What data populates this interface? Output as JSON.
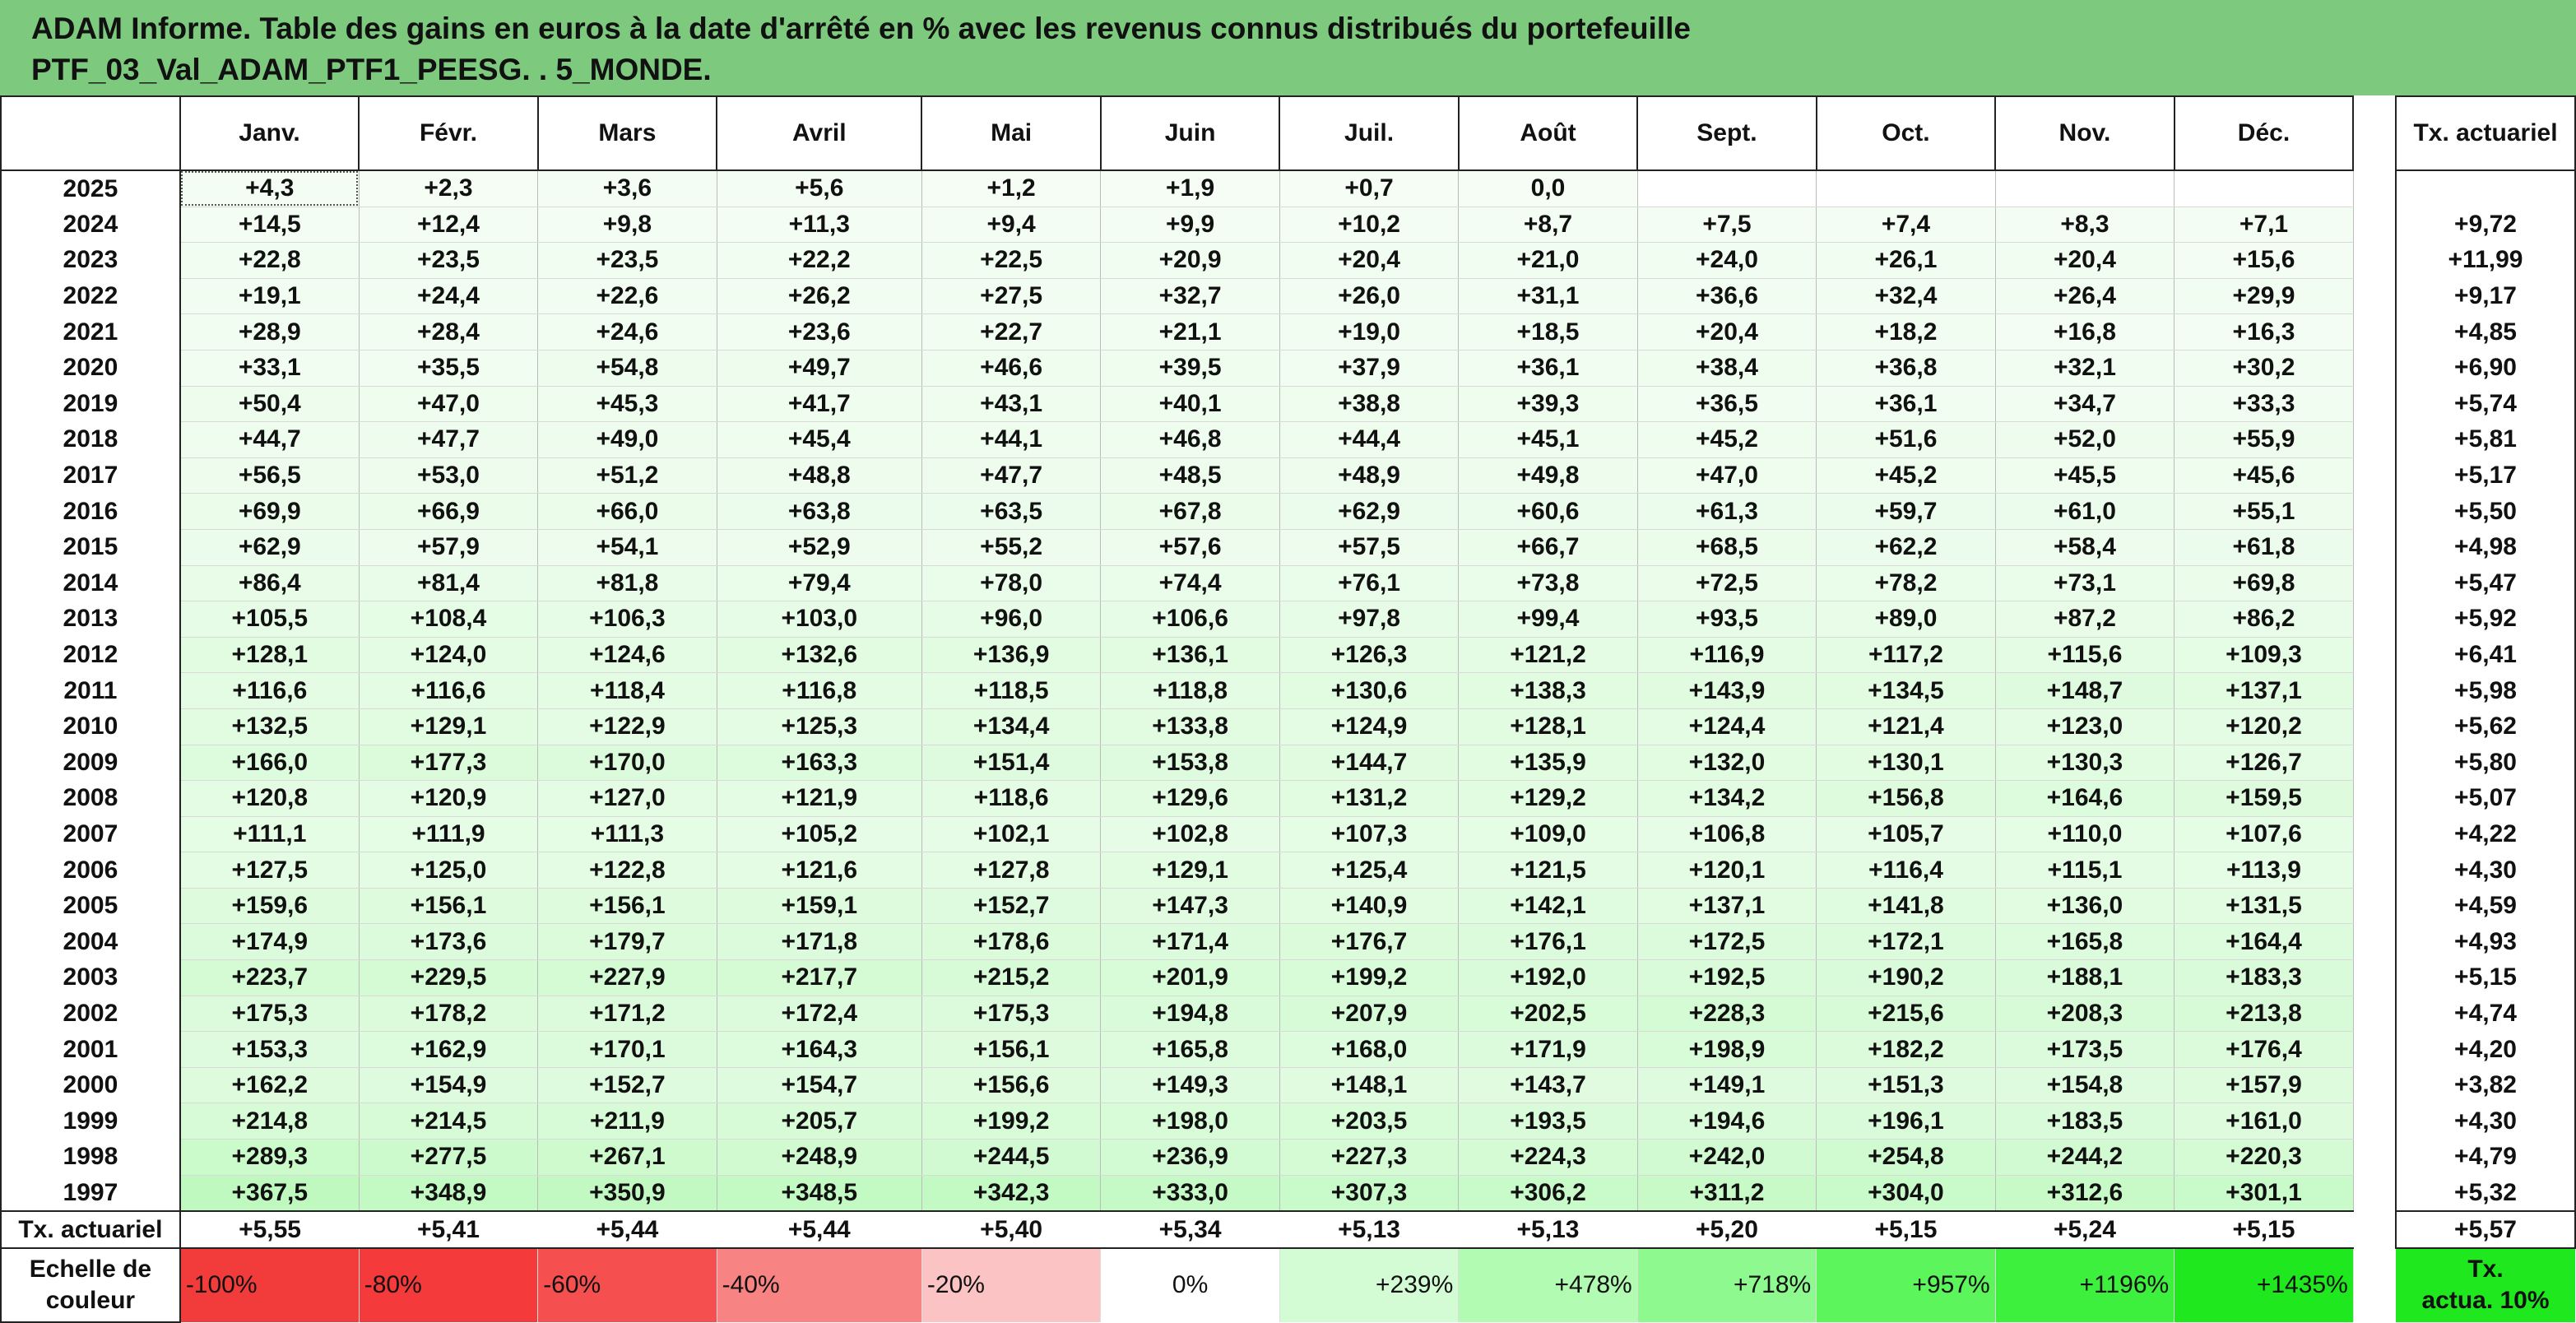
{
  "header": {
    "line1": "ADAM Informe. Table des gains en euros à la date d'arrêté en % avec les revenus connus distribués du portefeuille",
    "line2": "PTF_03_Val_ADAM_PTF1_PEESG. . 5_MONDE."
  },
  "months": [
    "Janv.",
    "Févr.",
    "Mars",
    "Avril",
    "Mai",
    "Juin",
    "Juil.",
    "Août",
    "Sept.",
    "Oct.",
    "Nov.",
    "Déc."
  ],
  "actuarial_header": "Tx. actuariel",
  "rows": [
    {
      "year": "2025",
      "values": [
        "+4,3",
        "+2,3",
        "+3,6",
        "+5,6",
        "+1,2",
        "+1,9",
        "+0,7",
        "0,0",
        "",
        "",
        "",
        ""
      ],
      "rate": ""
    },
    {
      "year": "2024",
      "values": [
        "+14,5",
        "+12,4",
        "+9,8",
        "+11,3",
        "+9,4",
        "+9,9",
        "+10,2",
        "+8,7",
        "+7,5",
        "+7,4",
        "+8,3",
        "+7,1"
      ],
      "rate": "+9,72"
    },
    {
      "year": "2023",
      "values": [
        "+22,8",
        "+23,5",
        "+23,5",
        "+22,2",
        "+22,5",
        "+20,9",
        "+20,4",
        "+21,0",
        "+24,0",
        "+26,1",
        "+20,4",
        "+15,6"
      ],
      "rate": "+11,99"
    },
    {
      "year": "2022",
      "values": [
        "+19,1",
        "+24,4",
        "+22,6",
        "+26,2",
        "+27,5",
        "+32,7",
        "+26,0",
        "+31,1",
        "+36,6",
        "+32,4",
        "+26,4",
        "+29,9"
      ],
      "rate": "+9,17"
    },
    {
      "year": "2021",
      "values": [
        "+28,9",
        "+28,4",
        "+24,6",
        "+23,6",
        "+22,7",
        "+21,1",
        "+19,0",
        "+18,5",
        "+20,4",
        "+18,2",
        "+16,8",
        "+16,3"
      ],
      "rate": "+4,85"
    },
    {
      "year": "2020",
      "values": [
        "+33,1",
        "+35,5",
        "+54,8",
        "+49,7",
        "+46,6",
        "+39,5",
        "+37,9",
        "+36,1",
        "+38,4",
        "+36,8",
        "+32,1",
        "+30,2"
      ],
      "rate": "+6,90"
    },
    {
      "year": "2019",
      "values": [
        "+50,4",
        "+47,0",
        "+45,3",
        "+41,7",
        "+43,1",
        "+40,1",
        "+38,8",
        "+39,3",
        "+36,5",
        "+36,1",
        "+34,7",
        "+33,3"
      ],
      "rate": "+5,74"
    },
    {
      "year": "2018",
      "values": [
        "+44,7",
        "+47,7",
        "+49,0",
        "+45,4",
        "+44,1",
        "+46,8",
        "+44,4",
        "+45,1",
        "+45,2",
        "+51,6",
        "+52,0",
        "+55,9"
      ],
      "rate": "+5,81"
    },
    {
      "year": "2017",
      "values": [
        "+56,5",
        "+53,0",
        "+51,2",
        "+48,8",
        "+47,7",
        "+48,5",
        "+48,9",
        "+49,8",
        "+47,0",
        "+45,2",
        "+45,5",
        "+45,6"
      ],
      "rate": "+5,17"
    },
    {
      "year": "2016",
      "values": [
        "+69,9",
        "+66,9",
        "+66,0",
        "+63,8",
        "+63,5",
        "+67,8",
        "+62,9",
        "+60,6",
        "+61,3",
        "+59,7",
        "+61,0",
        "+55,1"
      ],
      "rate": "+5,50"
    },
    {
      "year": "2015",
      "values": [
        "+62,9",
        "+57,9",
        "+54,1",
        "+52,9",
        "+55,2",
        "+57,6",
        "+57,5",
        "+66,7",
        "+68,5",
        "+62,2",
        "+58,4",
        "+61,8"
      ],
      "rate": "+4,98"
    },
    {
      "year": "2014",
      "values": [
        "+86,4",
        "+81,4",
        "+81,8",
        "+79,4",
        "+78,0",
        "+74,4",
        "+76,1",
        "+73,8",
        "+72,5",
        "+78,2",
        "+73,1",
        "+69,8"
      ],
      "rate": "+5,47"
    },
    {
      "year": "2013",
      "values": [
        "+105,5",
        "+108,4",
        "+106,3",
        "+103,0",
        "+96,0",
        "+106,6",
        "+97,8",
        "+99,4",
        "+93,5",
        "+89,0",
        "+87,2",
        "+86,2"
      ],
      "rate": "+5,92"
    },
    {
      "year": "2012",
      "values": [
        "+128,1",
        "+124,0",
        "+124,6",
        "+132,6",
        "+136,9",
        "+136,1",
        "+126,3",
        "+121,2",
        "+116,9",
        "+117,2",
        "+115,6",
        "+109,3"
      ],
      "rate": "+6,41"
    },
    {
      "year": "2011",
      "values": [
        "+116,6",
        "+116,6",
        "+118,4",
        "+116,8",
        "+118,5",
        "+118,8",
        "+130,6",
        "+138,3",
        "+143,9",
        "+134,5",
        "+148,7",
        "+137,1"
      ],
      "rate": "+5,98"
    },
    {
      "year": "2010",
      "values": [
        "+132,5",
        "+129,1",
        "+122,9",
        "+125,3",
        "+134,4",
        "+133,8",
        "+124,9",
        "+128,1",
        "+124,4",
        "+121,4",
        "+123,0",
        "+120,2"
      ],
      "rate": "+5,62"
    },
    {
      "year": "2009",
      "values": [
        "+166,0",
        "+177,3",
        "+170,0",
        "+163,3",
        "+151,4",
        "+153,8",
        "+144,7",
        "+135,9",
        "+132,0",
        "+130,1",
        "+130,3",
        "+126,7"
      ],
      "rate": "+5,80"
    },
    {
      "year": "2008",
      "values": [
        "+120,8",
        "+120,9",
        "+127,0",
        "+121,9",
        "+118,6",
        "+129,6",
        "+131,2",
        "+129,2",
        "+134,2",
        "+156,8",
        "+164,6",
        "+159,5"
      ],
      "rate": "+5,07"
    },
    {
      "year": "2007",
      "values": [
        "+111,1",
        "+111,9",
        "+111,3",
        "+105,2",
        "+102,1",
        "+102,8",
        "+107,3",
        "+109,0",
        "+106,8",
        "+105,7",
        "+110,0",
        "+107,6"
      ],
      "rate": "+4,22"
    },
    {
      "year": "2006",
      "values": [
        "+127,5",
        "+125,0",
        "+122,8",
        "+121,6",
        "+127,8",
        "+129,1",
        "+125,4",
        "+121,5",
        "+120,1",
        "+116,4",
        "+115,1",
        "+113,9"
      ],
      "rate": "+4,30"
    },
    {
      "year": "2005",
      "values": [
        "+159,6",
        "+156,1",
        "+156,1",
        "+159,1",
        "+152,7",
        "+147,3",
        "+140,9",
        "+142,1",
        "+137,1",
        "+141,8",
        "+136,0",
        "+131,5"
      ],
      "rate": "+4,59"
    },
    {
      "year": "2004",
      "values": [
        "+174,9",
        "+173,6",
        "+179,7",
        "+171,8",
        "+178,6",
        "+171,4",
        "+176,7",
        "+176,1",
        "+172,5",
        "+172,1",
        "+165,8",
        "+164,4"
      ],
      "rate": "+4,93"
    },
    {
      "year": "2003",
      "values": [
        "+223,7",
        "+229,5",
        "+227,9",
        "+217,7",
        "+215,2",
        "+201,9",
        "+199,2",
        "+192,0",
        "+192,5",
        "+190,2",
        "+188,1",
        "+183,3"
      ],
      "rate": "+5,15"
    },
    {
      "year": "2002",
      "values": [
        "+175,3",
        "+178,2",
        "+171,2",
        "+172,4",
        "+175,3",
        "+194,8",
        "+207,9",
        "+202,5",
        "+228,3",
        "+215,6",
        "+208,3",
        "+213,8"
      ],
      "rate": "+4,74"
    },
    {
      "year": "2001",
      "values": [
        "+153,3",
        "+162,9",
        "+170,1",
        "+164,3",
        "+156,1",
        "+165,8",
        "+168,0",
        "+171,9",
        "+198,9",
        "+182,2",
        "+173,5",
        "+176,4"
      ],
      "rate": "+4,20"
    },
    {
      "year": "2000",
      "values": [
        "+162,2",
        "+154,9",
        "+152,7",
        "+154,7",
        "+156,6",
        "+149,3",
        "+148,1",
        "+143,7",
        "+149,1",
        "+151,3",
        "+154,8",
        "+157,9"
      ],
      "rate": "+3,82"
    },
    {
      "year": "1999",
      "values": [
        "+214,8",
        "+214,5",
        "+211,9",
        "+205,7",
        "+199,2",
        "+198,0",
        "+203,5",
        "+193,5",
        "+194,6",
        "+196,1",
        "+183,5",
        "+161,0"
      ],
      "rate": "+4,30"
    },
    {
      "year": "1998",
      "values": [
        "+289,3",
        "+277,5",
        "+267,1",
        "+248,9",
        "+244,5",
        "+236,9",
        "+227,3",
        "+224,3",
        "+242,0",
        "+254,8",
        "+244,2",
        "+220,3"
      ],
      "rate": "+4,79"
    },
    {
      "year": "1997",
      "values": [
        "+367,5",
        "+348,9",
        "+350,9",
        "+348,5",
        "+342,3",
        "+333,0",
        "+307,3",
        "+306,2",
        "+311,2",
        "+304,0",
        "+312,6",
        "+301,1"
      ],
      "rate": "+5,32"
    }
  ],
  "summary": {
    "label": "Tx. actuariel",
    "values": [
      "+5,55",
      "+5,41",
      "+5,44",
      "+5,44",
      "+5,40",
      "+5,34",
      "+5,13",
      "+5,13",
      "+5,20",
      "+5,15",
      "+5,24",
      "+5,15"
    ],
    "rate": "+5,57"
  },
  "scale": {
    "label_line1": "Echelle de",
    "label_line2": "couleur",
    "cells": [
      {
        "text": "-100%",
        "color": "#f23c3c",
        "align": "left"
      },
      {
        "text": "-80%",
        "color": "#f43a3a",
        "align": "left"
      },
      {
        "text": "-60%",
        "color": "#f5504f",
        "align": "left"
      },
      {
        "text": "-40%",
        "color": "#f78383",
        "align": "left"
      },
      {
        "text": "-20%",
        "color": "#fbc3c3",
        "align": "left"
      },
      {
        "text": "0%",
        "color": "#ffffff",
        "align": "center"
      },
      {
        "text": "+239%",
        "color": "#d4fcd4",
        "align": "right"
      },
      {
        "text": "+478%",
        "color": "#b2fbb2",
        "align": "right"
      },
      {
        "text": "+718%",
        "color": "#8ef98e",
        "align": "right"
      },
      {
        "text": "+957%",
        "color": "#5cf55c",
        "align": "right"
      },
      {
        "text": "+1196%",
        "color": "#3ef03e",
        "align": "right"
      },
      {
        "text": "+1435%",
        "color": "#1fe81f",
        "align": "right"
      }
    ],
    "rate_line1": "Tx.",
    "rate_line2": "actua. 10%",
    "rate_color": "#1fe81f"
  }
}
